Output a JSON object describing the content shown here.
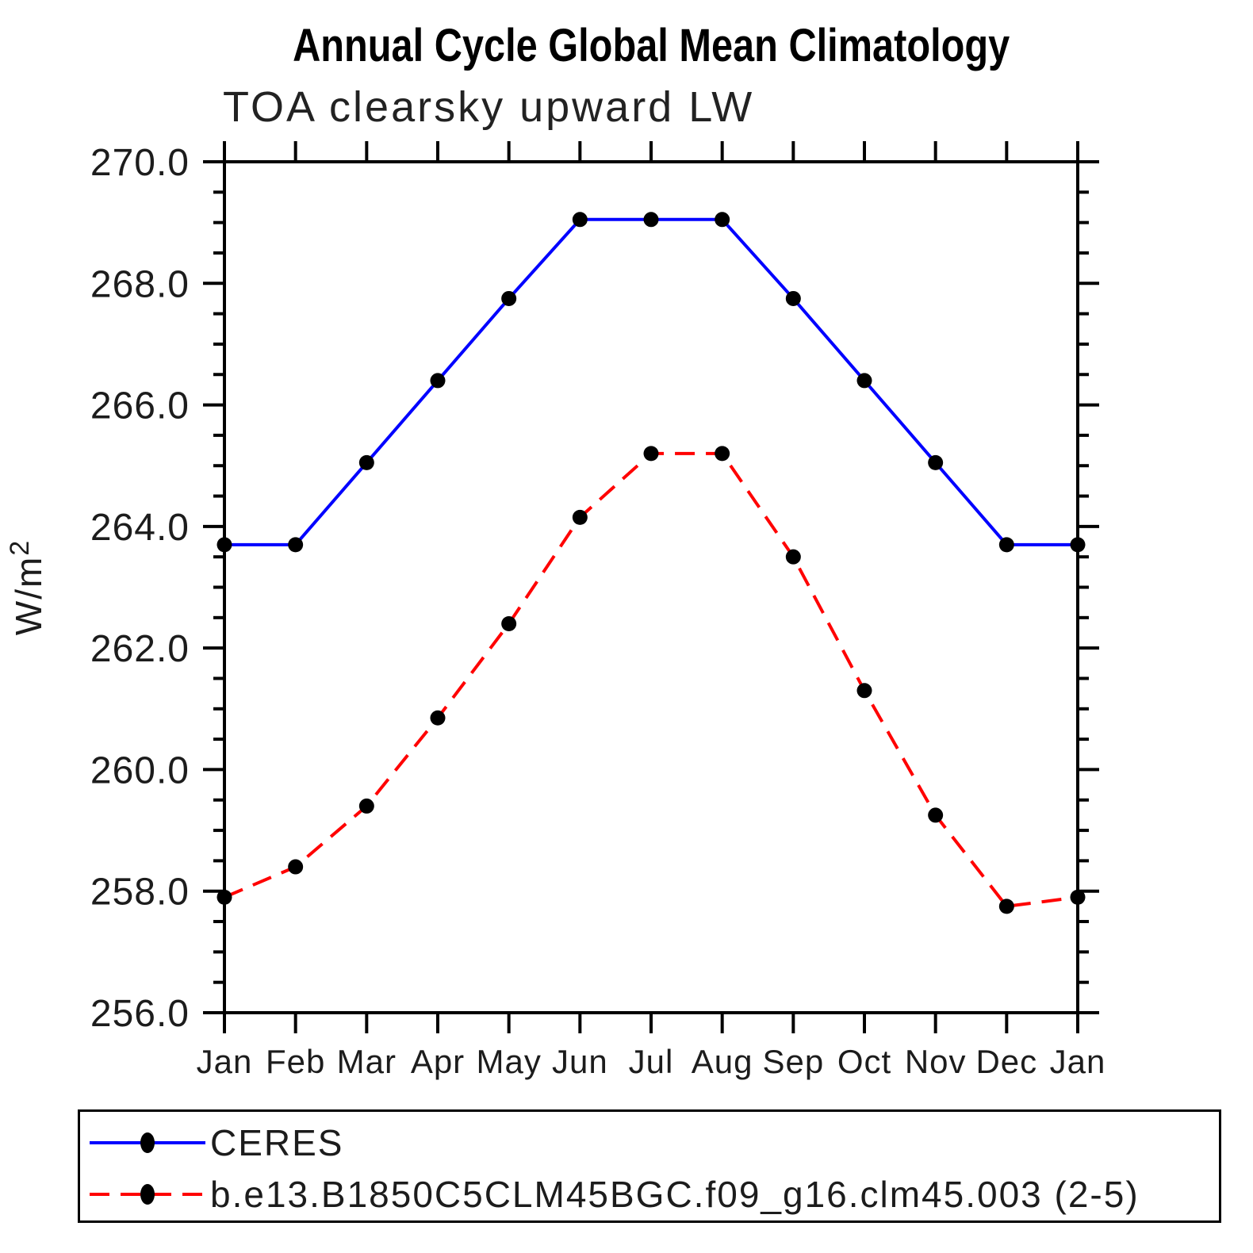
{
  "title": "Annual Cycle Global Mean Climatology",
  "subtitle": "TOA clearsky upward LW",
  "chart_data": {
    "type": "line",
    "x_categories": [
      "Jan",
      "Feb",
      "Mar",
      "Apr",
      "May",
      "Jun",
      "Jul",
      "Aug",
      "Sep",
      "Oct",
      "Nov",
      "Dec",
      "Jan"
    ],
    "series": [
      {
        "name": "CERES",
        "color": "#0000ff",
        "line_style": "solid",
        "marker": "filled-circle",
        "marker_color": "#000000",
        "values": [
          263.7,
          263.7,
          265.05,
          266.4,
          267.75,
          269.05,
          269.05,
          269.05,
          267.75,
          266.4,
          265.05,
          263.7,
          263.7
        ]
      },
      {
        "name": "b.e13.B1850C5CLM45BGC.f09_g16.clm45.003 (2-5)",
        "color": "#ff0000",
        "line_style": "dashed",
        "marker": "filled-circle",
        "marker_color": "#000000",
        "values": [
          257.9,
          258.4,
          259.4,
          260.85,
          262.4,
          264.15,
          265.2,
          265.2,
          263.5,
          261.3,
          259.25,
          257.75,
          257.9
        ]
      }
    ],
    "xlabel": "",
    "ylabel": "W/m²",
    "ylim": [
      256.0,
      270.0
    ],
    "ytick_major_interval": 2.0,
    "ytick_minor_interval": 0.5,
    "ytick_labels": [
      "256.0",
      "258.0",
      "260.0",
      "262.0",
      "264.0",
      "266.0",
      "268.0",
      "270.0"
    ],
    "grid": false,
    "axis_color": "#000000",
    "legend_position": "bottom-left-box"
  }
}
